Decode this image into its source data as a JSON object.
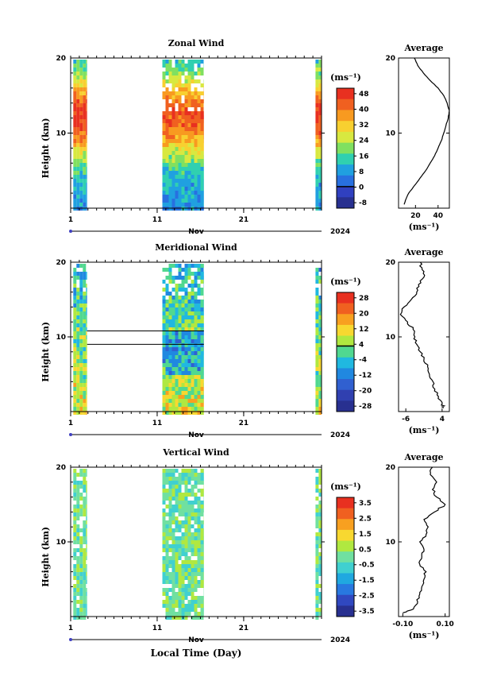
{
  "chart_data": [
    {
      "type": "heatmap",
      "title": "Zonal Wind",
      "ylabel": "Height (km)",
      "yticks": [
        10,
        20
      ],
      "ylim": [
        0,
        20
      ],
      "xticks": [
        "1",
        "11",
        "21"
      ],
      "xlim": [
        1,
        30
      ],
      "month_label": "Nov",
      "year_label": "2024",
      "colorbar": {
        "unit": "(ms⁻¹)",
        "ticks": [
          "48",
          "40",
          "32",
          "24",
          "16",
          "8",
          "0",
          "-8"
        ],
        "colors": [
          "#e83020",
          "#f06020",
          "#f89a20",
          "#f8d030",
          "#d8e840",
          "#80e060",
          "#30d0b0",
          "#20a0e0",
          "#2870e0",
          "#3040c0",
          "#283090"
        ],
        "zero_line_fraction": 0.82
      },
      "data_spans_days": [
        [
          1.3,
          2.9
        ],
        [
          11.6,
          16.4
        ],
        [
          29.3,
          30.0
        ]
      ],
      "average_profile": {
        "title": "Average",
        "xticks": [
          "20",
          "40"
        ],
        "xlabel": "(ms⁻¹)",
        "xlim": [
          5,
          50
        ],
        "ylim": [
          0,
          20
        ],
        "yticks": [
          10,
          20
        ],
        "height_km": [
          0.5,
          1,
          2,
          3,
          4,
          5,
          6,
          7,
          8,
          9,
          10,
          11,
          12,
          13,
          14,
          15,
          16,
          17,
          18,
          19,
          20
        ],
        "wind": [
          10,
          11,
          14,
          19,
          24,
          29,
          33,
          37,
          40,
          43,
          45,
          47,
          49,
          50,
          48,
          45,
          40,
          33,
          27,
          22,
          19
        ]
      }
    },
    {
      "type": "heatmap",
      "title": "Meridional Wind",
      "ylabel": "Height (km)",
      "yticks": [
        10,
        20
      ],
      "ylim": [
        0,
        20
      ],
      "xticks": [
        "1",
        "11",
        "21"
      ],
      "xlim": [
        1,
        30
      ],
      "month_label": "Nov",
      "year_label": "2024",
      "colorbar": {
        "unit": "(ms⁻¹)",
        "ticks": [
          "28",
          "20",
          "12",
          "4",
          "-4",
          "-12",
          "-20",
          "-28"
        ],
        "colors": [
          "#e83020",
          "#f06020",
          "#f8a020",
          "#f8d830",
          "#b0e840",
          "#50d890",
          "#20b8e0",
          "#2088e0",
          "#3060d0",
          "#3040b0",
          "#283090"
        ],
        "zero_line_fraction": 0.45
      },
      "data_spans_days": [
        [
          1.3,
          2.9
        ],
        [
          11.6,
          16.4
        ],
        [
          29.3,
          30.0
        ]
      ],
      "average_profile": {
        "title": "Average",
        "xticks": [
          "-6",
          "4"
        ],
        "xlabel": "(ms⁻¹)",
        "xlim": [
          -8,
          6
        ],
        "ylim": [
          0,
          20
        ],
        "yticks": [
          10,
          20
        ],
        "height_km": [
          0.5,
          1,
          2,
          3,
          4,
          5,
          6,
          7,
          8,
          9,
          10,
          11,
          12,
          13,
          14,
          15,
          16,
          17,
          18,
          19,
          20
        ],
        "wind": [
          4.5,
          4,
          3,
          2,
          1.5,
          0.5,
          0,
          -1,
          -2,
          -3,
          -3.5,
          -4,
          -5.5,
          -7.5,
          -6.5,
          -4.5,
          -3,
          -2.5,
          -1,
          -1.5,
          -2
        ]
      }
    },
    {
      "type": "heatmap",
      "title": "Vertical Wind",
      "ylabel": "Height (km)",
      "yticks": [
        10,
        20
      ],
      "ylim": [
        0,
        20
      ],
      "xticks": [
        "1",
        "11",
        "21"
      ],
      "xlim": [
        1,
        30
      ],
      "month_label": "Nov",
      "year_label": "2024",
      "xlabel": "Local Time (Day)",
      "colorbar": {
        "unit": "(ms⁻¹)",
        "ticks": [
          "3.5",
          "2.5",
          "1.5",
          "0.5",
          "-0.5",
          "-1.5",
          "-2.5",
          "-3.5"
        ],
        "colors": [
          "#e83020",
          "#f06020",
          "#f8a020",
          "#f8d830",
          "#b0e840",
          "#70e0a0",
          "#40d0d0",
          "#20a8e0",
          "#2878e0",
          "#3048c0",
          "#283090"
        ]
      },
      "data_spans_days": [
        [
          1.3,
          2.9
        ],
        [
          11.6,
          16.4
        ],
        [
          29.3,
          30.0
        ]
      ],
      "average_profile": {
        "title": "Average",
        "xticks": [
          "-0.10",
          "0.10"
        ],
        "xlabel": "(ms⁻¹)",
        "xlim": [
          -0.12,
          0.12
        ],
        "ylim": [
          0,
          20
        ],
        "yticks": [
          10,
          20
        ],
        "height_km": [
          0.5,
          1,
          2,
          3,
          4,
          5,
          6,
          7,
          8,
          9,
          10,
          11,
          12,
          13,
          14,
          15,
          16,
          17,
          18,
          19,
          20
        ],
        "wind": [
          -0.1,
          -0.05,
          -0.03,
          -0.02,
          -0.01,
          0.0,
          0.01,
          -0.02,
          -0.01,
          0.0,
          -0.02,
          0.01,
          0.02,
          0.0,
          0.05,
          0.1,
          0.06,
          0.04,
          0.06,
          0.03,
          0.04
        ]
      }
    }
  ]
}
